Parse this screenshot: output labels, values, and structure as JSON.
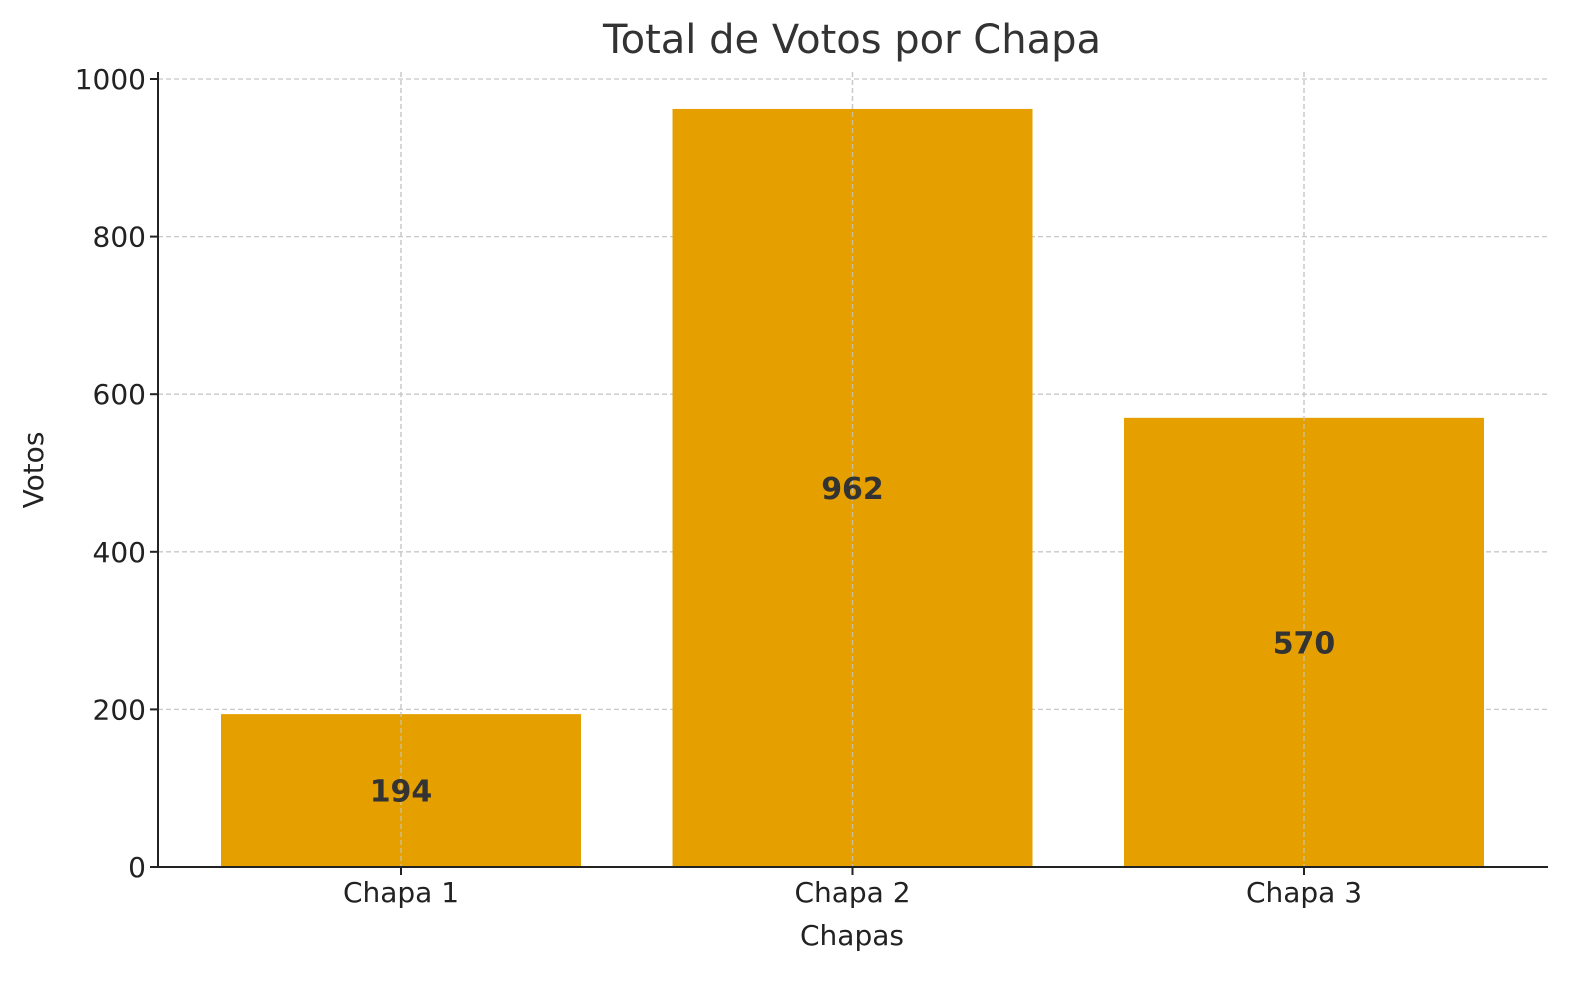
{
  "chart_data": {
    "type": "bar",
    "title": "Total de Votos por Chapa",
    "xlabel": "Chapas",
    "ylabel": "Votos",
    "categories": [
      "Chapa 1",
      "Chapa 2",
      "Chapa 3"
    ],
    "values": [
      194,
      962,
      570
    ],
    "data_labels": [
      "194",
      "962",
      "570"
    ],
    "ylim": [
      0,
      1000
    ],
    "yticks": [
      0,
      200,
      400,
      600,
      800,
      1000
    ],
    "ytick_labels": [
      "0",
      "200",
      "400",
      "600",
      "800",
      "1000"
    ],
    "grid": true,
    "bar_color": "#E5A000",
    "label_color": "#333333"
  }
}
